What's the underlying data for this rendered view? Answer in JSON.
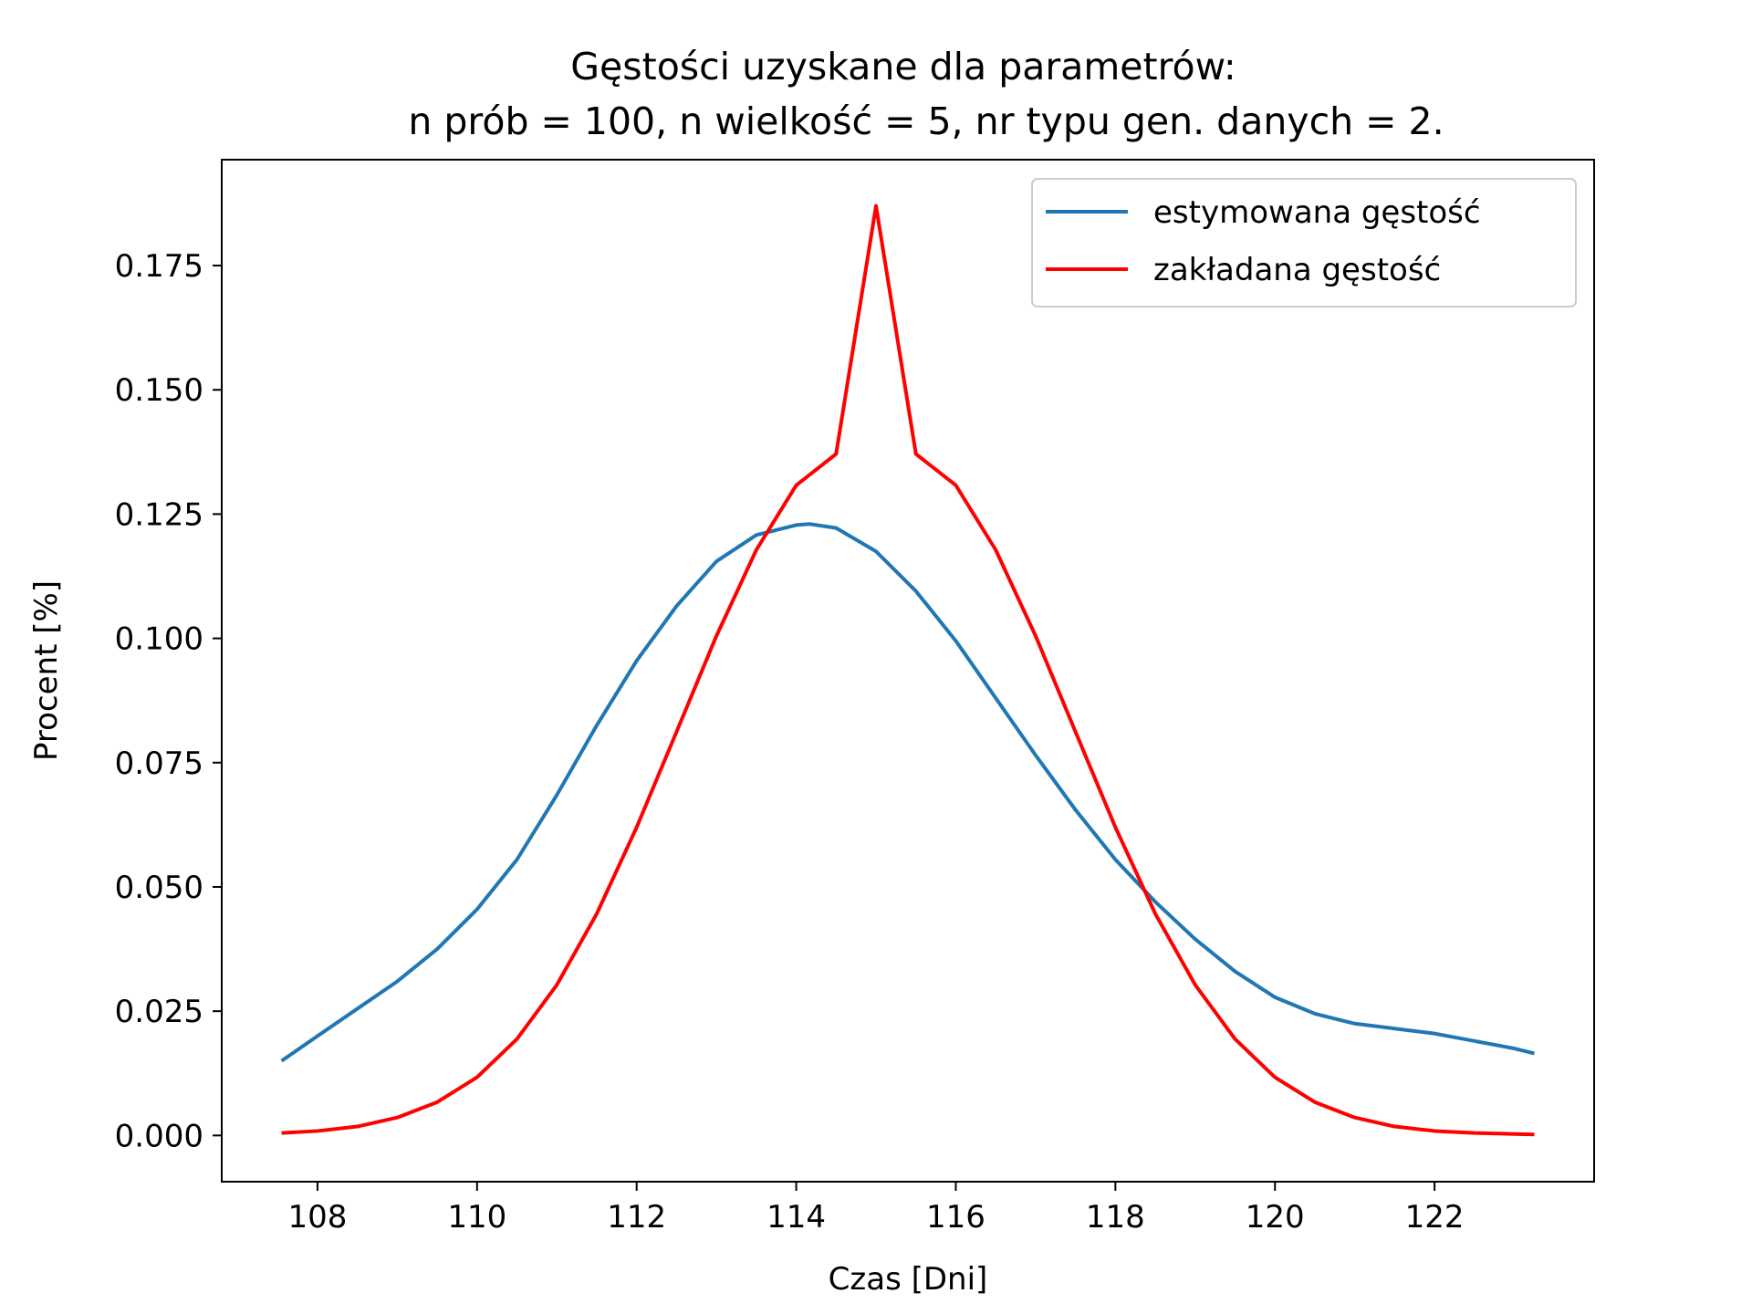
{
  "chart_data": {
    "type": "line",
    "title_line1": "Gęstości uzyskane dla parametrów:",
    "title_line2": "n prób = 100, n wielkość = 5, nr typu gen. danych = 2.",
    "xlabel": "Czas [Dni]",
    "ylabel": "Procent [%]",
    "xlim": [
      106.8,
      124.0
    ],
    "ylim": [
      -0.0093,
      0.1963
    ],
    "xticks": [
      108,
      110,
      112,
      114,
      116,
      118,
      120,
      122
    ],
    "yticks": [
      0.0,
      0.025,
      0.05,
      0.075,
      0.1,
      0.125,
      0.15,
      0.175
    ],
    "ytick_labels": [
      "0.000",
      "0.025",
      "0.050",
      "0.075",
      "0.100",
      "0.125",
      "0.150",
      "0.175"
    ],
    "legend_position": "upper right",
    "grid": false,
    "series": [
      {
        "name": "estymowana gęstość",
        "color": "#1f77b4",
        "x": [
          107.55,
          108.0,
          108.5,
          109.0,
          109.5,
          110.0,
          110.5,
          111.0,
          111.5,
          112.0,
          112.5,
          113.0,
          113.5,
          114.0,
          114.17,
          114.5,
          115.0,
          115.5,
          116.0,
          116.5,
          117.0,
          117.5,
          118.0,
          118.5,
          119.0,
          119.5,
          120.0,
          120.5,
          121.0,
          121.5,
          122.0,
          122.5,
          123.0,
          123.25
        ],
        "y": [
          0.015,
          0.02,
          0.0255,
          0.031,
          0.0375,
          0.0455,
          0.0555,
          0.0685,
          0.0825,
          0.0955,
          0.1065,
          0.1155,
          0.1208,
          0.1228,
          0.123,
          0.1222,
          0.1175,
          0.1095,
          0.0995,
          0.088,
          0.0765,
          0.0655,
          0.0555,
          0.047,
          0.0395,
          0.033,
          0.0278,
          0.0245,
          0.0225,
          0.0215,
          0.0205,
          0.019,
          0.0175,
          0.0165
        ]
      },
      {
        "name": "zakładana gęstość",
        "color": "#ff0000",
        "x": [
          107.55,
          108.0,
          108.5,
          109.0,
          109.5,
          110.0,
          110.5,
          111.0,
          111.5,
          112.0,
          112.5,
          113.0,
          113.5,
          114.0,
          114.5,
          115.0,
          115.5,
          116.0,
          116.5,
          117.0,
          117.5,
          118.0,
          118.5,
          119.0,
          119.5,
          120.0,
          120.5,
          121.0,
          121.5,
          122.0,
          122.5,
          123.0,
          123.25
        ],
        "y": [
          0.0005,
          0.0009,
          0.0018,
          0.0036,
          0.0067,
          0.0117,
          0.0194,
          0.0303,
          0.0446,
          0.062,
          0.0812,
          0.1005,
          0.1178,
          0.1308,
          0.1371,
          0.187,
          0.1371,
          0.1308,
          0.1178,
          0.1005,
          0.0812,
          0.062,
          0.0446,
          0.0303,
          0.0194,
          0.0117,
          0.0067,
          0.0036,
          0.0018,
          0.0009,
          0.0005,
          0.0003,
          0.0002
        ]
      }
    ]
  }
}
